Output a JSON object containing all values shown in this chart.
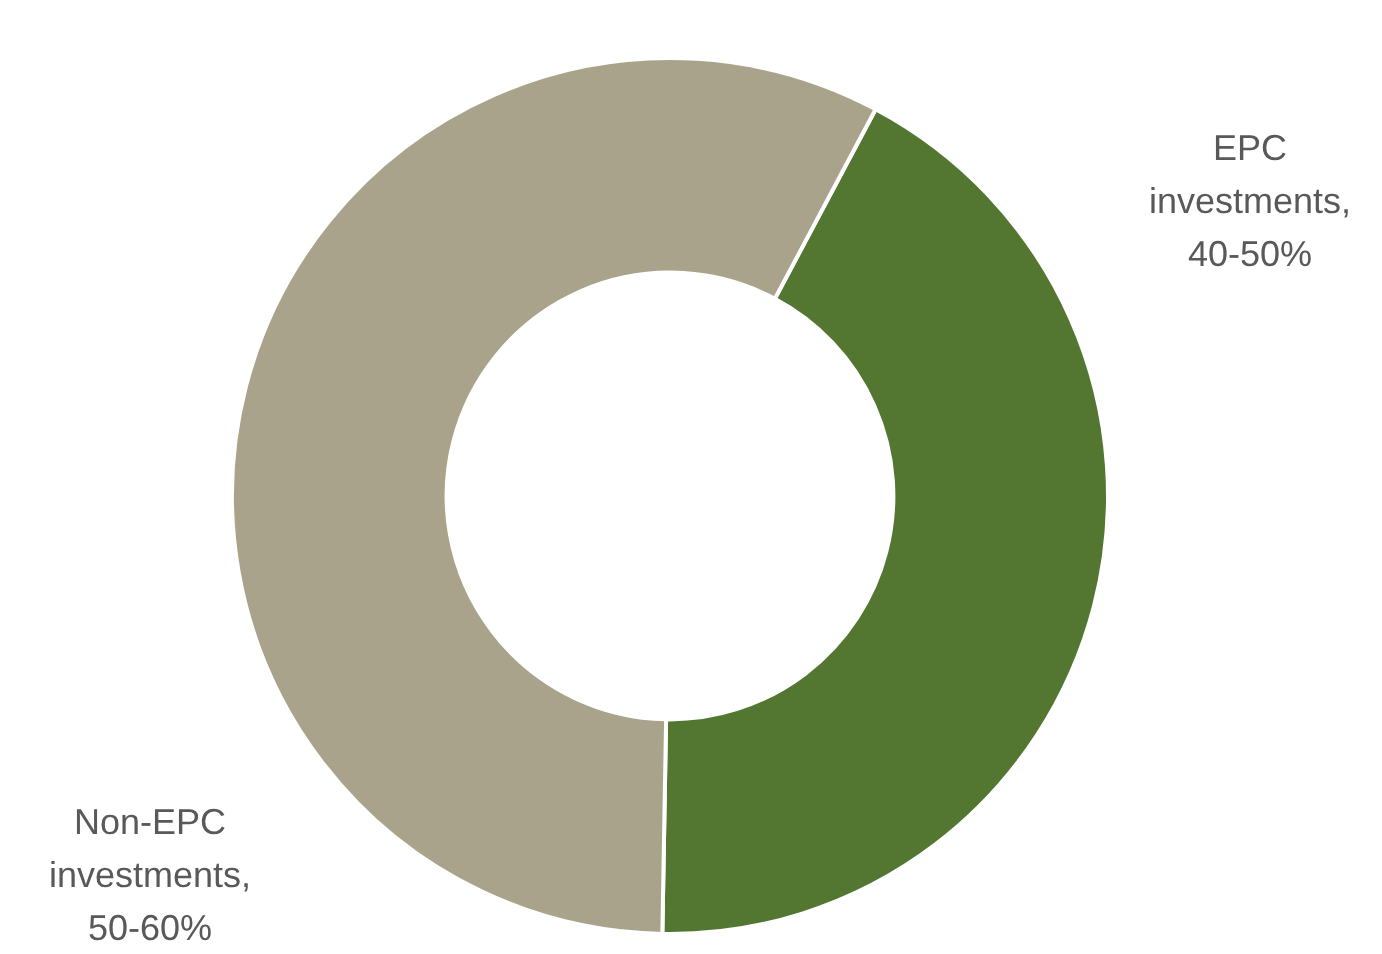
{
  "chart_data": {
    "type": "donut",
    "categories": [
      "EPC investments, 40-50%",
      "Non-EPC investments, 50-60%"
    ],
    "values": [
      42.5,
      57.5
    ],
    "colors": [
      "#537631",
      "#aaa38b"
    ],
    "legend": false
  }
}
